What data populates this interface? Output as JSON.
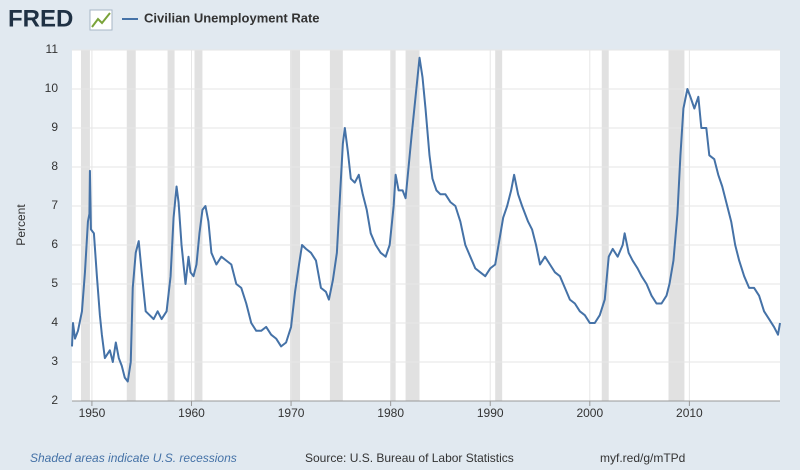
{
  "logo": "FRED",
  "chart_data": {
    "type": "line",
    "y_label": "Percent",
    "x": [
      1948.0,
      1948.1,
      1948.3,
      1948.6,
      1949.0,
      1949.3,
      1949.6,
      1949.75,
      1949.8,
      1949.9,
      1950.2,
      1950.5,
      1950.8,
      1951.0,
      1951.3,
      1951.8,
      1952.1,
      1952.4,
      1952.7,
      1953.0,
      1953.3,
      1953.6,
      1953.9,
      1954.1,
      1954.4,
      1954.7,
      1955.0,
      1955.4,
      1955.8,
      1956.2,
      1956.6,
      1957.0,
      1957.5,
      1957.9,
      1958.2,
      1958.5,
      1958.7,
      1959.0,
      1959.4,
      1959.7,
      1959.9,
      1960.2,
      1960.5,
      1960.8,
      1961.1,
      1961.4,
      1961.7,
      1962.0,
      1962.5,
      1963.0,
      1963.5,
      1964.0,
      1964.5,
      1965.0,
      1965.5,
      1966.0,
      1966.5,
      1967.0,
      1967.5,
      1968.0,
      1968.5,
      1969.0,
      1969.5,
      1970.0,
      1970.4,
      1970.8,
      1971.1,
      1971.5,
      1972.0,
      1972.5,
      1973.0,
      1973.5,
      1973.8,
      1974.2,
      1974.6,
      1974.9,
      1975.2,
      1975.4,
      1975.7,
      1976.0,
      1976.4,
      1976.8,
      1977.2,
      1977.6,
      1978.0,
      1978.5,
      1979.0,
      1979.5,
      1979.9,
      1980.3,
      1980.5,
      1980.8,
      1981.2,
      1981.5,
      1981.8,
      1982.1,
      1982.5,
      1982.9,
      1983.2,
      1983.5,
      1983.9,
      1984.2,
      1984.6,
      1985.0,
      1985.5,
      1986.0,
      1986.5,
      1987.0,
      1987.5,
      1988.0,
      1988.5,
      1989.0,
      1989.5,
      1990.0,
      1990.5,
      1990.9,
      1991.3,
      1991.7,
      1992.1,
      1992.4,
      1992.8,
      1993.2,
      1993.8,
      1994.2,
      1994.6,
      1995.0,
      1995.5,
      1996.0,
      1996.5,
      1997.0,
      1997.5,
      1998.0,
      1998.5,
      1999.0,
      1999.5,
      2000.0,
      2000.5,
      2001.0,
      2001.5,
      2001.9,
      2002.3,
      2002.8,
      2003.3,
      2003.5,
      2003.9,
      2004.3,
      2004.8,
      2005.2,
      2005.7,
      2006.2,
      2006.7,
      2007.2,
      2007.7,
      2008.0,
      2008.4,
      2008.8,
      2009.1,
      2009.4,
      2009.8,
      2010.1,
      2010.5,
      2010.9,
      2011.2,
      2011.7,
      2012.0,
      2012.5,
      2012.9,
      2013.3,
      2013.8,
      2014.2,
      2014.6,
      2015.0,
      2015.5,
      2016.0,
      2016.5,
      2017.0,
      2017.5,
      2018.0,
      2018.5,
      2018.9,
      2019.1
    ],
    "series": [
      {
        "name": "Civilian Unemployment Rate",
        "color": "#4572a7",
        "values": [
          3.4,
          4.0,
          3.6,
          3.8,
          4.3,
          5.3,
          6.6,
          6.8,
          7.9,
          6.4,
          6.3,
          5.2,
          4.2,
          3.7,
          3.1,
          3.3,
          3.0,
          3.5,
          3.1,
          2.9,
          2.6,
          2.5,
          3.0,
          4.9,
          5.8,
          6.1,
          5.3,
          4.3,
          4.2,
          4.1,
          4.3,
          4.1,
          4.3,
          5.2,
          6.7,
          7.5,
          7.1,
          6.0,
          5.0,
          5.7,
          5.3,
          5.2,
          5.5,
          6.3,
          6.9,
          7.0,
          6.6,
          5.8,
          5.5,
          5.7,
          5.6,
          5.5,
          5.0,
          4.9,
          4.5,
          4.0,
          3.8,
          3.8,
          3.9,
          3.7,
          3.6,
          3.4,
          3.5,
          3.9,
          4.8,
          5.5,
          6.0,
          5.9,
          5.8,
          5.6,
          4.9,
          4.8,
          4.6,
          5.1,
          5.8,
          7.2,
          8.6,
          9.0,
          8.4,
          7.7,
          7.6,
          7.8,
          7.3,
          6.9,
          6.3,
          6.0,
          5.8,
          5.7,
          6.0,
          7.0,
          7.8,
          7.4,
          7.4,
          7.2,
          8.0,
          8.8,
          9.8,
          10.8,
          10.3,
          9.5,
          8.3,
          7.7,
          7.4,
          7.3,
          7.3,
          7.1,
          7.0,
          6.6,
          6.0,
          5.7,
          5.4,
          5.3,
          5.2,
          5.4,
          5.5,
          6.1,
          6.7,
          7.0,
          7.4,
          7.8,
          7.3,
          7.0,
          6.6,
          6.4,
          6.0,
          5.5,
          5.7,
          5.5,
          5.3,
          5.2,
          4.9,
          4.6,
          4.5,
          4.3,
          4.2,
          4.0,
          4.0,
          4.2,
          4.6,
          5.7,
          5.9,
          5.7,
          6.0,
          6.3,
          5.8,
          5.6,
          5.4,
          5.2,
          5.0,
          4.7,
          4.5,
          4.5,
          4.7,
          5.0,
          5.6,
          6.8,
          8.3,
          9.5,
          10.0,
          9.8,
          9.5,
          9.8,
          9.0,
          9.0,
          8.3,
          8.2,
          7.8,
          7.5,
          7.0,
          6.6,
          6.0,
          5.6,
          5.2,
          4.9,
          4.9,
          4.7,
          4.3,
          4.1,
          3.9,
          3.7,
          4.0
        ]
      }
    ],
    "xlim": [
      1948.0,
      2019.1
    ],
    "ylim": [
      2,
      11
    ],
    "xticks": [
      1950,
      1960,
      1970,
      1980,
      1990,
      2000,
      2010
    ],
    "yticks": [
      2,
      3,
      4,
      5,
      6,
      7,
      8,
      9,
      10,
      11
    ],
    "grid": true,
    "recession_color": "#e1e1e1",
    "recessions": [
      [
        1948.9,
        1949.8
      ],
      [
        1953.5,
        1954.4
      ],
      [
        1957.6,
        1958.3
      ],
      [
        1960.3,
        1961.1
      ],
      [
        1969.9,
        1970.9
      ],
      [
        1973.9,
        1975.2
      ],
      [
        1980.0,
        1980.5
      ],
      [
        1981.5,
        1982.9
      ],
      [
        1990.5,
        1991.2
      ],
      [
        2001.2,
        2001.9
      ],
      [
        2007.9,
        2009.5
      ]
    ]
  },
  "footer": {
    "note": "Shaded areas indicate U.S. recessions",
    "source": "Source: U.S. Bureau of Labor Statistics",
    "url": "myf.red/g/mTPd"
  }
}
